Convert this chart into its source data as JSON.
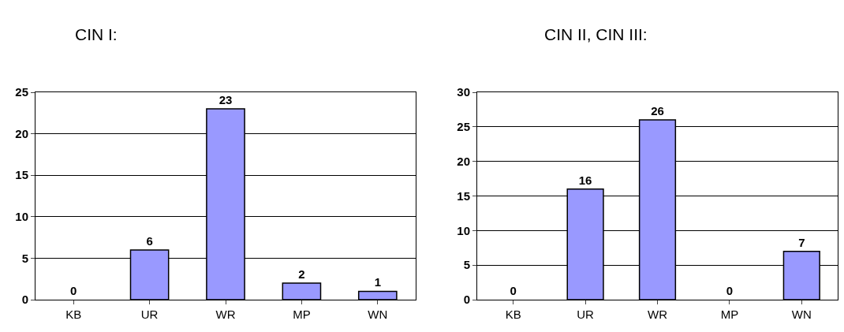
{
  "chart_data": [
    {
      "type": "bar",
      "title": "CIN I:",
      "categories": [
        "KB",
        "UR",
        "WR",
        "MP",
        "WN"
      ],
      "values": [
        0,
        6,
        23,
        2,
        1
      ],
      "color": "#9999ff",
      "ylim": [
        0,
        25
      ],
      "yticks": [
        0,
        5,
        10,
        15,
        20,
        25
      ],
      "grid": "y",
      "data_labels": true
    },
    {
      "type": "bar",
      "title": "CIN II, CIN III:",
      "categories": [
        "KB",
        "UR",
        "WR",
        "MP",
        "WN"
      ],
      "values": [
        0,
        16,
        26,
        0,
        7
      ],
      "color": "#9999ff",
      "ylim": [
        0,
        30
      ],
      "yticks": [
        0,
        5,
        10,
        15,
        20,
        25,
        30
      ],
      "grid": "y",
      "data_labels": true
    }
  ]
}
